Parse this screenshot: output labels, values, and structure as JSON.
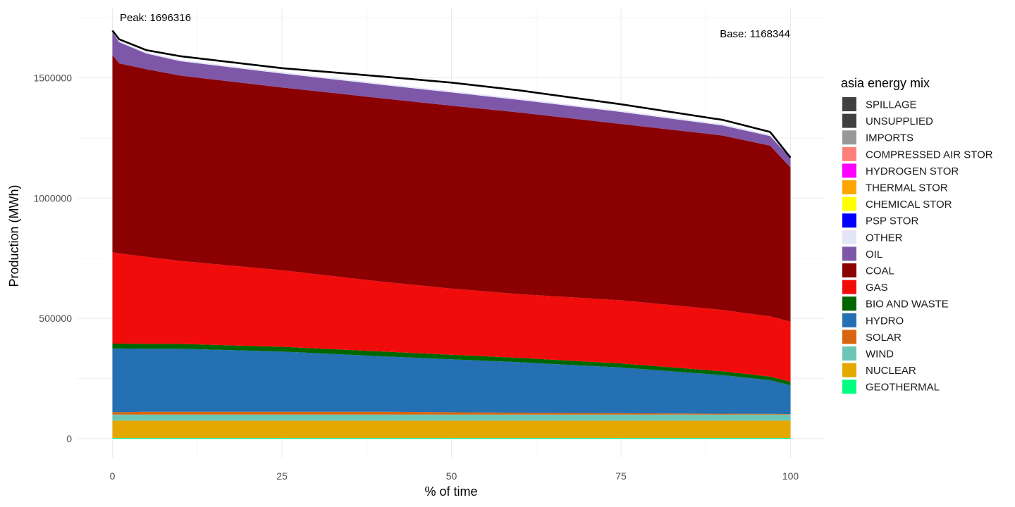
{
  "chart_data": {
    "type": "area",
    "xlabel": "% of time",
    "ylabel": "Production (MWh)",
    "xlim": [
      0,
      100
    ],
    "ylim": [
      0,
      1750000
    ],
    "x_ticks": [
      "0",
      "25",
      "50",
      "75",
      "100"
    ],
    "y_ticks": [
      "0",
      "500000",
      "1000000",
      "1500000"
    ],
    "grid": true,
    "legend": {
      "title": "asia energy mix",
      "placement": "right"
    },
    "annotations": {
      "peak": "Peak: 1696316",
      "base": "Base: 1168344"
    },
    "x": [
      0,
      1,
      5,
      10,
      25,
      40,
      50,
      60,
      75,
      90,
      97,
      100
    ],
    "total": [
      1696316,
      1660000,
      1615000,
      1590000,
      1540000,
      1505000,
      1480000,
      1448000,
      1390000,
      1325000,
      1275000,
      1168344
    ],
    "series": [
      {
        "name": "GEOTHERMAL",
        "color": "#00FF80",
        "values": [
          3000,
          3000,
          3000,
          3000,
          3000,
          3000,
          3000,
          3000,
          3000,
          3000,
          3000,
          3000
        ]
      },
      {
        "name": "NUCLEAR",
        "color": "#E5A800",
        "values": [
          72000,
          72000,
          72000,
          72000,
          72000,
          72000,
          72000,
          72000,
          72000,
          72000,
          72000,
          72000
        ]
      },
      {
        "name": "WIND",
        "color": "#6DC6B5",
        "values": [
          25000,
          25000,
          25000,
          25000,
          25000,
          25000,
          25000,
          25000,
          25000,
          25000,
          25000,
          25000
        ]
      },
      {
        "name": "SOLAR",
        "color": "#D7660E",
        "values": [
          10000,
          10000,
          12000,
          12000,
          12000,
          12000,
          10000,
          8000,
          6000,
          4000,
          3000,
          2000
        ]
      },
      {
        "name": "HYDRO",
        "color": "#2470B2",
        "values": [
          265000,
          265000,
          262000,
          262000,
          250000,
          230000,
          220000,
          210000,
          190000,
          160000,
          140000,
          120000
        ]
      },
      {
        "name": "BIO AND WASTE",
        "color": "#006600",
        "values": [
          20000,
          20000,
          20000,
          20000,
          20000,
          20000,
          19000,
          18000,
          17000,
          16000,
          15000,
          15000
        ]
      },
      {
        "name": "GAS",
        "color": "#F10C0C",
        "values": [
          380000,
          375000,
          362000,
          345000,
          318000,
          290000,
          275000,
          265000,
          262000,
          255000,
          250000,
          250000
        ]
      },
      {
        "name": "COAL",
        "color": "#8B0000",
        "values": [
          820000,
          790000,
          780000,
          770000,
          760000,
          762000,
          760000,
          755000,
          733000,
          725000,
          710000,
          640000
        ]
      },
      {
        "name": "OIL",
        "color": "#7E57A8",
        "values": [
          95000,
          88000,
          65000,
          60000,
          58000,
          56000,
          55000,
          52000,
          50000,
          42000,
          40000,
          40000
        ]
      },
      {
        "name": "OTHER",
        "color": "#E5E5F8",
        "values": [
          6000,
          6000,
          6000,
          6000,
          6000,
          6000,
          6000,
          6000,
          6000,
          6000,
          6000,
          6000
        ]
      },
      {
        "name": "PSP STOR",
        "color": "#0000FF",
        "values": [
          0,
          0,
          0,
          0,
          0,
          0,
          0,
          0,
          0,
          0,
          0,
          0
        ]
      },
      {
        "name": "CHEMICAL STOR",
        "color": "#FFFF00",
        "values": [
          0,
          0,
          0,
          0,
          0,
          0,
          0,
          0,
          0,
          0,
          0,
          0
        ]
      },
      {
        "name": "THERMAL STOR",
        "color": "#FFA500",
        "values": [
          0,
          0,
          0,
          0,
          0,
          0,
          0,
          0,
          0,
          0,
          0,
          0
        ]
      },
      {
        "name": "HYDROGEN STOR",
        "color": "#FF00FF",
        "values": [
          0,
          0,
          0,
          0,
          0,
          0,
          0,
          0,
          0,
          0,
          0,
          0
        ]
      },
      {
        "name": "COMPRESSED AIR STOR",
        "color": "#FF8078",
        "values": [
          0,
          0,
          0,
          0,
          0,
          0,
          0,
          0,
          0,
          0,
          0,
          0
        ]
      },
      {
        "name": "IMPORTS",
        "color": "#999999",
        "values": [
          0,
          0,
          0,
          0,
          0,
          0,
          0,
          0,
          0,
          0,
          0,
          0
        ]
      },
      {
        "name": "UNSUPPLIED",
        "color": "#404040",
        "values": [
          0,
          0,
          0,
          0,
          0,
          0,
          0,
          0,
          0,
          0,
          0,
          0
        ]
      },
      {
        "name": "SPILLAGE",
        "color": "#404040",
        "values": [
          0,
          0,
          0,
          0,
          0,
          0,
          0,
          0,
          0,
          0,
          0,
          0
        ]
      }
    ],
    "legend_order": [
      "SPILLAGE",
      "UNSUPPLIED",
      "IMPORTS",
      "COMPRESSED AIR STOR",
      "HYDROGEN STOR",
      "THERMAL STOR",
      "CHEMICAL STOR",
      "PSP STOR",
      "OTHER",
      "OIL",
      "COAL",
      "GAS",
      "BIO AND WASTE",
      "HYDRO",
      "SOLAR",
      "WIND",
      "NUCLEAR",
      "GEOTHERMAL"
    ]
  }
}
